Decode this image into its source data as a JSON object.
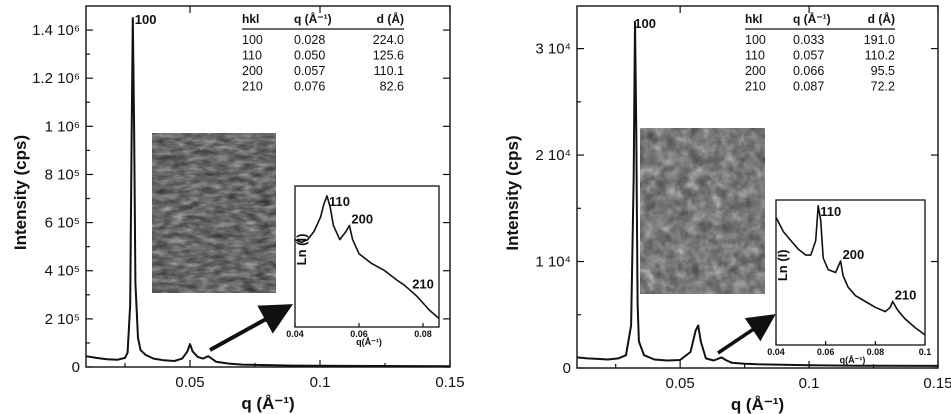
{
  "chart_data": [
    {
      "type": "line",
      "xlabel": "q (Å⁻¹)",
      "ylabel": "Intensity (cps)",
      "xlim": [
        0.01,
        0.15
      ],
      "ylim": [
        0,
        1500000
      ],
      "x_ticks": [
        {
          "v": 0.05,
          "label": "0.05"
        },
        {
          "v": 0.1,
          "label": "0.1"
        },
        {
          "v": 0.15,
          "label": "0.15"
        }
      ],
      "y_ticks": [
        {
          "v": 0,
          "label": "0"
        },
        {
          "v": 200000,
          "label": "2 10⁵"
        },
        {
          "v": 400000,
          "label": "4 10⁵"
        },
        {
          "v": 600000,
          "label": "6 10⁵"
        },
        {
          "v": 800000,
          "label": "8 10⁵"
        },
        {
          "v": 1000000,
          "label": "1 10⁶"
        },
        {
          "v": 1200000,
          "label": "1.2 10⁶"
        },
        {
          "v": 1400000,
          "label": "1.4 10⁶"
        }
      ],
      "x": [
        0.01,
        0.014,
        0.018,
        0.022,
        0.025,
        0.026,
        0.027,
        0.0275,
        0.028,
        0.0285,
        0.029,
        0.03,
        0.031,
        0.033,
        0.036,
        0.04,
        0.044,
        0.047,
        0.049,
        0.05,
        0.051,
        0.053,
        0.055,
        0.057,
        0.058,
        0.06,
        0.065,
        0.07,
        0.08,
        0.09,
        0.1,
        0.12,
        0.15
      ],
      "y": [
        45000,
        38000,
        32000,
        30000,
        38000,
        60000,
        260000,
        900000,
        1450000,
        1000000,
        350000,
        120000,
        70000,
        50000,
        35000,
        28000,
        25000,
        35000,
        65000,
        95000,
        65000,
        42000,
        35000,
        45000,
        38000,
        22000,
        14000,
        10000,
        8000,
        6000,
        5000,
        4000,
        3000
      ],
      "peak_label": {
        "text": "100",
        "x": 0.028,
        "y": 1450000
      },
      "table": {
        "headers": [
          "hkl",
          "q (Å⁻¹)",
          "d (Å)"
        ],
        "rows": [
          [
            "100",
            "0.028",
            "224.0"
          ],
          [
            "110",
            "0.050",
            "125.6"
          ],
          [
            "200",
            "0.057",
            "110.1"
          ],
          [
            "210",
            "0.076",
            "82.6"
          ]
        ]
      },
      "inset": {
        "ylabel": "Ln (I)",
        "xlabel": "q(Å⁻¹)",
        "xlim": [
          0.04,
          0.085
        ],
        "ylim": [
          0,
          1
        ],
        "x_ticks": [
          {
            "v": 0.04,
            "label": "0.04"
          },
          {
            "v": 0.06,
            "label": "0.06"
          },
          {
            "v": 0.08,
            "label": "0.08"
          }
        ],
        "x": [
          0.04,
          0.042,
          0.044,
          0.046,
          0.048,
          0.049,
          0.05,
          0.051,
          0.052,
          0.054,
          0.056,
          0.057,
          0.058,
          0.06,
          0.064,
          0.068,
          0.072,
          0.074,
          0.076,
          0.078,
          0.08,
          0.082,
          0.085
        ],
        "y": [
          0.62,
          0.6,
          0.62,
          0.68,
          0.78,
          0.87,
          0.93,
          0.85,
          0.72,
          0.62,
          0.68,
          0.72,
          0.62,
          0.52,
          0.45,
          0.4,
          0.33,
          0.3,
          0.26,
          0.22,
          0.17,
          0.12,
          0.06
        ],
        "peaks": [
          {
            "text": "110",
            "x": 0.05,
            "y": 0.93
          },
          {
            "text": "200",
            "x": 0.057,
            "y": 0.72
          },
          {
            "text": "210",
            "x": 0.076,
            "y": 0.26
          }
        ]
      }
    },
    {
      "type": "line",
      "xlabel": "q (Å⁻¹)",
      "ylabel": "Intensity (cps)",
      "xlim": [
        0.01,
        0.15
      ],
      "ylim": [
        0,
        34000
      ],
      "x_ticks": [
        {
          "v": 0.05,
          "label": "0.05"
        },
        {
          "v": 0.1,
          "label": "0.1"
        },
        {
          "v": 0.15,
          "label": "0.15"
        }
      ],
      "y_ticks": [
        {
          "v": 0,
          "label": "0"
        },
        {
          "v": 10000,
          "label": "1 10⁴"
        },
        {
          "v": 20000,
          "label": "2 10⁴"
        },
        {
          "v": 30000,
          "label": "3 10⁴"
        }
      ],
      "x": [
        0.01,
        0.014,
        0.018,
        0.022,
        0.026,
        0.029,
        0.031,
        0.032,
        0.0325,
        0.033,
        0.0335,
        0.034,
        0.036,
        0.04,
        0.045,
        0.05,
        0.054,
        0.056,
        0.057,
        0.058,
        0.06,
        0.063,
        0.066,
        0.068,
        0.07,
        0.075,
        0.08,
        0.09,
        0.1,
        0.12,
        0.15
      ],
      "y": [
        1000,
        900,
        850,
        800,
        900,
        1200,
        4000,
        18000,
        32500,
        22000,
        6000,
        2500,
        1200,
        800,
        700,
        750,
        1500,
        3500,
        4000,
        2500,
        900,
        700,
        1000,
        700,
        500,
        400,
        350,
        300,
        250,
        220,
        200
      ],
      "peak_label": {
        "text": "100",
        "x": 0.033,
        "y": 32500
      },
      "table": {
        "headers": [
          "hkl",
          "q (Å⁻¹)",
          "d (Å)"
        ],
        "rows": [
          [
            "100",
            "0.033",
            "191.0"
          ],
          [
            "110",
            "0.057",
            "110.2"
          ],
          [
            "200",
            "0.066",
            "95.5"
          ],
          [
            "210",
            "0.087",
            "72.2"
          ]
        ]
      },
      "inset": {
        "ylabel": "Ln (I)",
        "xlabel": "q(Å⁻¹)",
        "xlim": [
          0.04,
          0.1
        ],
        "ylim": [
          0,
          1
        ],
        "x_ticks": [
          {
            "v": 0.04,
            "label": "0.04"
          },
          {
            "v": 0.06,
            "label": "0.06"
          },
          {
            "v": 0.08,
            "label": "0.08"
          },
          {
            "v": 0.1,
            "label": "0.1"
          }
        ],
        "x": [
          0.04,
          0.043,
          0.046,
          0.049,
          0.052,
          0.054,
          0.056,
          0.057,
          0.058,
          0.059,
          0.061,
          0.064,
          0.066,
          0.067,
          0.069,
          0.072,
          0.076,
          0.08,
          0.084,
          0.086,
          0.087,
          0.089,
          0.092,
          0.096,
          0.1
        ],
        "y": [
          0.88,
          0.78,
          0.72,
          0.66,
          0.62,
          0.62,
          0.72,
          0.96,
          0.86,
          0.6,
          0.52,
          0.5,
          0.58,
          0.48,
          0.4,
          0.34,
          0.3,
          0.26,
          0.23,
          0.26,
          0.3,
          0.24,
          0.18,
          0.12,
          0.07
        ],
        "peaks": [
          {
            "text": "110",
            "x": 0.057,
            "y": 0.96
          },
          {
            "text": "200",
            "x": 0.066,
            "y": 0.58
          },
          {
            "text": "210",
            "x": 0.087,
            "y": 0.3
          }
        ]
      }
    }
  ]
}
